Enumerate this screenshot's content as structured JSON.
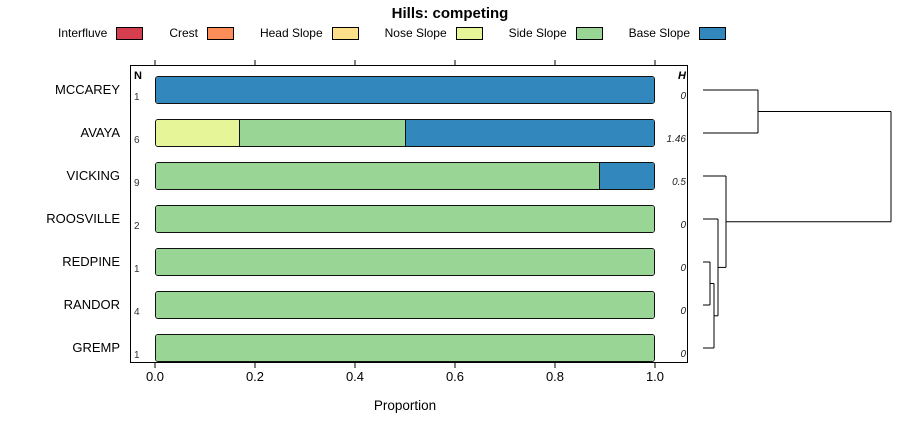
{
  "chart_data": {
    "type": "bar",
    "stacked": true,
    "orientation": "horizontal",
    "title": "Hills: competing",
    "xlabel": "Proportion",
    "xlim": [
      0,
      1
    ],
    "x_ticks": [
      "0.0",
      "0.2",
      "0.4",
      "0.6",
      "0.8",
      "1.0"
    ],
    "grid": false,
    "legend_position": "top",
    "column_headers": {
      "n": "N",
      "h": "H"
    },
    "legend": [
      {
        "label": "Interfluve",
        "color": "#d53e4f"
      },
      {
        "label": "Crest",
        "color": "#fc8d59"
      },
      {
        "label": "Head Slope",
        "color": "#fee08b"
      },
      {
        "label": "Nose Slope",
        "color": "#e6f598"
      },
      {
        "label": "Side Slope",
        "color": "#99d594"
      },
      {
        "label": "Base Slope",
        "color": "#3288bd"
      }
    ],
    "categories": [
      "MCCAREY",
      "AVAYA",
      "VICKING",
      "ROOSVILLE",
      "REDPINE",
      "RANDOR",
      "GREMP"
    ],
    "rows": [
      {
        "category": "MCCAREY",
        "n": 1,
        "h": "0",
        "segments": [
          {
            "class": "Base Slope",
            "proportion": 1.0
          }
        ]
      },
      {
        "category": "AVAYA",
        "n": 6,
        "h": "1.46",
        "segments": [
          {
            "class": "Nose Slope",
            "proportion": 0.167
          },
          {
            "class": "Side Slope",
            "proportion": 0.333
          },
          {
            "class": "Base Slope",
            "proportion": 0.5
          }
        ]
      },
      {
        "category": "VICKING",
        "n": 9,
        "h": "0.5",
        "segments": [
          {
            "class": "Side Slope",
            "proportion": 0.889
          },
          {
            "class": "Base Slope",
            "proportion": 0.111
          }
        ]
      },
      {
        "category": "ROOSVILLE",
        "n": 2,
        "h": "0",
        "segments": [
          {
            "class": "Side Slope",
            "proportion": 1.0
          }
        ]
      },
      {
        "category": "REDPINE",
        "n": 1,
        "h": "0",
        "segments": [
          {
            "class": "Side Slope",
            "proportion": 1.0
          }
        ]
      },
      {
        "category": "RANDOR",
        "n": 4,
        "h": "0",
        "segments": [
          {
            "class": "Side Slope",
            "proportion": 1.0
          }
        ]
      },
      {
        "category": "GREMP",
        "n": 1,
        "h": "0",
        "segments": [
          {
            "class": "Side Slope",
            "proportion": 1.0
          }
        ]
      }
    ],
    "dendrogram_segments": [
      [
        703,
        90,
        758,
        90
      ],
      [
        703,
        133,
        758,
        133
      ],
      [
        758,
        90,
        758,
        133
      ],
      [
        758,
        111.5,
        891,
        111.5
      ],
      [
        703,
        176,
        726,
        176
      ],
      [
        703,
        219,
        718,
        219
      ],
      [
        703,
        262,
        710,
        262
      ],
      [
        703,
        305,
        710,
        305
      ],
      [
        703,
        348,
        714,
        348
      ],
      [
        710,
        262,
        710,
        305
      ],
      [
        710,
        283.5,
        714,
        283.5
      ],
      [
        714,
        283.5,
        714,
        348
      ],
      [
        714,
        315.8,
        718,
        315.8
      ],
      [
        718,
        219,
        718,
        315.8
      ],
      [
        718,
        267.4,
        726,
        267.4
      ],
      [
        726,
        176,
        726,
        267.4
      ],
      [
        726,
        221.7,
        891,
        221.7
      ],
      [
        891,
        111.5,
        891,
        221.7
      ]
    ]
  }
}
